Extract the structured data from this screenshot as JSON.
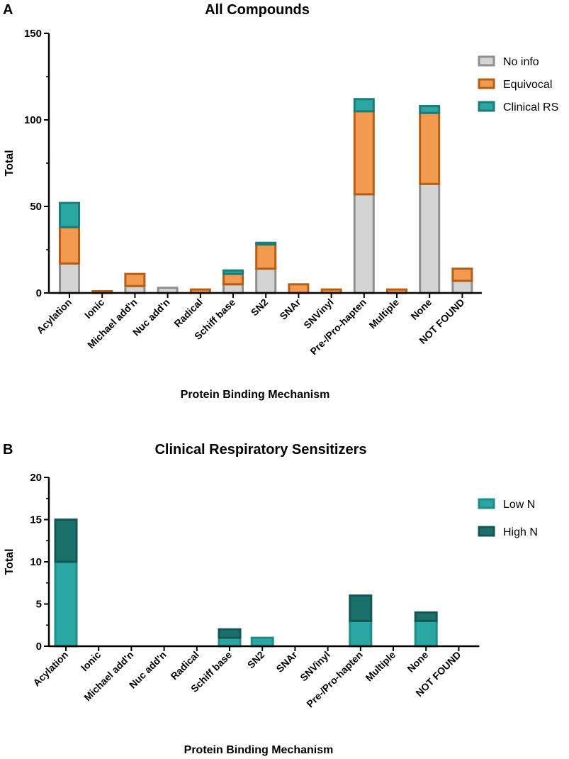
{
  "chart_data": [
    {
      "panel": "A",
      "type": "bar",
      "stacked": true,
      "title": "All Compounds",
      "xlabel": "Protein  Binding  Mechanism",
      "ylabel": "Total",
      "ylim": [
        0,
        150
      ],
      "yticks": [
        0,
        50,
        100,
        150
      ],
      "categories": [
        "Acylation",
        "Ionic",
        "Michael add'n",
        "Nuc add'n",
        "Radical",
        "Schiff base",
        "SN2",
        "SNAr",
        "SNVinyl",
        "Pre-/Pro-hapten",
        "Multiple",
        "None",
        "NOT FOUND"
      ],
      "series": [
        {
          "name": "No info",
          "fill": "#d4d4d4",
          "stroke": "#8f8f8f",
          "values": [
            17,
            0,
            4,
            3,
            0,
            5,
            14,
            0,
            0,
            57,
            0,
            63,
            7
          ]
        },
        {
          "name": "Equivocal",
          "fill": "#f29a50",
          "stroke": "#b85e14",
          "values": [
            21,
            1,
            7,
            0,
            2,
            6,
            14,
            5,
            2,
            48,
            2,
            41,
            7
          ]
        },
        {
          "name": "Clinical RS",
          "fill": "#2aa6a3",
          "stroke": "#1c7c78",
          "values": [
            14,
            0,
            0,
            0,
            0,
            2,
            1,
            0,
            0,
            7,
            0,
            4,
            0
          ]
        }
      ],
      "legend_position": "top-right"
    },
    {
      "panel": "B",
      "type": "bar",
      "stacked": true,
      "title": "Clinical Respiratory Sensitizers",
      "xlabel": "Protein  Binding  Mechanism",
      "ylabel": "Total",
      "ylim": [
        0,
        20
      ],
      "yticks": [
        0,
        5,
        10,
        15,
        20
      ],
      "categories": [
        "Acylation",
        "Ionic",
        "Michael add'n",
        "Nuc add'n",
        "Radical",
        "Schiff base",
        "SN2",
        "SNAr",
        "SNVinyl",
        "Pre-/Pro-hapten",
        "Multiple",
        "None",
        "NOT FOUND"
      ],
      "series": [
        {
          "name": "Low N",
          "fill": "#2aa6a3",
          "stroke": "#1f8e8a",
          "values": [
            10,
            0,
            0,
            0,
            0,
            1,
            1,
            0,
            0,
            3,
            0,
            3,
            0
          ]
        },
        {
          "name": "High N",
          "fill": "#1c706c",
          "stroke": "#145653",
          "values": [
            5,
            0,
            0,
            0,
            0,
            1,
            0,
            0,
            0,
            3,
            0,
            1,
            0
          ]
        }
      ],
      "legend_position": "top-right"
    }
  ]
}
